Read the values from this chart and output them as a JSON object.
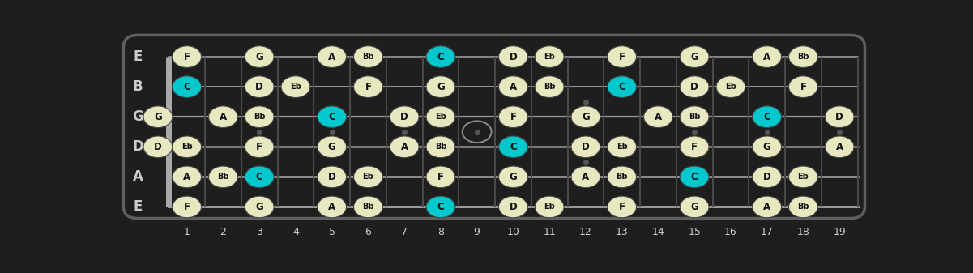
{
  "bg_color": "#1e1e1e",
  "fret_color": "#4a4a4a",
  "string_color": "#999999",
  "note_fill_normal": "#e8e8c0",
  "note_fill_root": "#00c8cc",
  "note_text_color": "#111111",
  "label_color": "#cccccc",
  "open_circle_color": "#888888",
  "num_strings": 6,
  "string_labels": [
    "E",
    "B",
    "G",
    "D",
    "A",
    "E"
  ],
  "display_frets": [
    1,
    2,
    3,
    4,
    5,
    6,
    7,
    8,
    9,
    10,
    11,
    12,
    13,
    14,
    15,
    16,
    17,
    18,
    19
  ],
  "notes": [
    {
      "string": 0,
      "fret": 1,
      "note": "F",
      "root": false
    },
    {
      "string": 0,
      "fret": 3,
      "note": "G",
      "root": false
    },
    {
      "string": 0,
      "fret": 5,
      "note": "A",
      "root": false
    },
    {
      "string": 0,
      "fret": 6,
      "note": "Bb",
      "root": false
    },
    {
      "string": 0,
      "fret": 8,
      "note": "C",
      "root": true
    },
    {
      "string": 0,
      "fret": 10,
      "note": "D",
      "root": false
    },
    {
      "string": 0,
      "fret": 11,
      "note": "Eb",
      "root": false
    },
    {
      "string": 0,
      "fret": 13,
      "note": "F",
      "root": false
    },
    {
      "string": 0,
      "fret": 15,
      "note": "G",
      "root": false
    },
    {
      "string": 0,
      "fret": 17,
      "note": "A",
      "root": false
    },
    {
      "string": 0,
      "fret": 18,
      "note": "Bb",
      "root": false
    },
    {
      "string": 1,
      "fret": 1,
      "note": "C",
      "root": true
    },
    {
      "string": 1,
      "fret": 3,
      "note": "D",
      "root": false
    },
    {
      "string": 1,
      "fret": 4,
      "note": "Eb",
      "root": false
    },
    {
      "string": 1,
      "fret": 6,
      "note": "F",
      "root": false
    },
    {
      "string": 1,
      "fret": 8,
      "note": "G",
      "root": false
    },
    {
      "string": 1,
      "fret": 10,
      "note": "A",
      "root": false
    },
    {
      "string": 1,
      "fret": 11,
      "note": "Bb",
      "root": false
    },
    {
      "string": 1,
      "fret": 13,
      "note": "C",
      "root": true
    },
    {
      "string": 1,
      "fret": 15,
      "note": "D",
      "root": false
    },
    {
      "string": 1,
      "fret": 16,
      "note": "Eb",
      "root": false
    },
    {
      "string": 1,
      "fret": 18,
      "note": "F",
      "root": false
    },
    {
      "string": 2,
      "fret": 0,
      "note": "G",
      "root": false
    },
    {
      "string": 2,
      "fret": 2,
      "note": "A",
      "root": false
    },
    {
      "string": 2,
      "fret": 3,
      "note": "Bb",
      "root": false
    },
    {
      "string": 2,
      "fret": 5,
      "note": "C",
      "root": true
    },
    {
      "string": 2,
      "fret": 7,
      "note": "D",
      "root": false
    },
    {
      "string": 2,
      "fret": 8,
      "note": "Eb",
      "root": false
    },
    {
      "string": 2,
      "fret": 10,
      "note": "F",
      "root": false
    },
    {
      "string": 2,
      "fret": 12,
      "note": "G",
      "root": false
    },
    {
      "string": 2,
      "fret": 14,
      "note": "A",
      "root": false
    },
    {
      "string": 2,
      "fret": 15,
      "note": "Bb",
      "root": false
    },
    {
      "string": 2,
      "fret": 17,
      "note": "C",
      "root": true
    },
    {
      "string": 2,
      "fret": 19,
      "note": "D",
      "root": false
    },
    {
      "string": 3,
      "fret": 0,
      "note": "D",
      "root": false
    },
    {
      "string": 3,
      "fret": 1,
      "note": "Eb",
      "root": false
    },
    {
      "string": 3,
      "fret": 3,
      "note": "F",
      "root": false
    },
    {
      "string": 3,
      "fret": 5,
      "note": "G",
      "root": false
    },
    {
      "string": 3,
      "fret": 7,
      "note": "A",
      "root": false
    },
    {
      "string": 3,
      "fret": 8,
      "note": "Bb",
      "root": false
    },
    {
      "string": 3,
      "fret": 10,
      "note": "C",
      "root": true
    },
    {
      "string": 3,
      "fret": 12,
      "note": "D",
      "root": false
    },
    {
      "string": 3,
      "fret": 13,
      "note": "Eb",
      "root": false
    },
    {
      "string": 3,
      "fret": 15,
      "note": "F",
      "root": false
    },
    {
      "string": 3,
      "fret": 17,
      "note": "G",
      "root": false
    },
    {
      "string": 3,
      "fret": 19,
      "note": "A",
      "root": false
    },
    {
      "string": 4,
      "fret": 1,
      "note": "A",
      "root": false
    },
    {
      "string": 4,
      "fret": 2,
      "note": "Bb",
      "root": false
    },
    {
      "string": 4,
      "fret": 3,
      "note": "C",
      "root": true
    },
    {
      "string": 4,
      "fret": 5,
      "note": "D",
      "root": false
    },
    {
      "string": 4,
      "fret": 6,
      "note": "Eb",
      "root": false
    },
    {
      "string": 4,
      "fret": 8,
      "note": "F",
      "root": false
    },
    {
      "string": 4,
      "fret": 10,
      "note": "G",
      "root": false
    },
    {
      "string": 4,
      "fret": 12,
      "note": "A",
      "root": false
    },
    {
      "string": 4,
      "fret": 13,
      "note": "Bb",
      "root": false
    },
    {
      "string": 4,
      "fret": 15,
      "note": "C",
      "root": true
    },
    {
      "string": 4,
      "fret": 17,
      "note": "D",
      "root": false
    },
    {
      "string": 4,
      "fret": 18,
      "note": "Eb",
      "root": false
    },
    {
      "string": 5,
      "fret": 1,
      "note": "F",
      "root": false
    },
    {
      "string": 5,
      "fret": 3,
      "note": "G",
      "root": false
    },
    {
      "string": 5,
      "fret": 5,
      "note": "A",
      "root": false
    },
    {
      "string": 5,
      "fret": 6,
      "note": "Bb",
      "root": false
    },
    {
      "string": 5,
      "fret": 8,
      "note": "C",
      "root": true
    },
    {
      "string": 5,
      "fret": 10,
      "note": "D",
      "root": false
    },
    {
      "string": 5,
      "fret": 11,
      "note": "Eb",
      "root": false
    },
    {
      "string": 5,
      "fret": 13,
      "note": "F",
      "root": false
    },
    {
      "string": 5,
      "fret": 15,
      "note": "G",
      "root": false
    },
    {
      "string": 5,
      "fret": 17,
      "note": "A",
      "root": false
    },
    {
      "string": 5,
      "fret": 18,
      "note": "Bb",
      "root": false
    }
  ],
  "open_circle_fret": 9,
  "open_circle_strings": [
    2,
    3
  ]
}
